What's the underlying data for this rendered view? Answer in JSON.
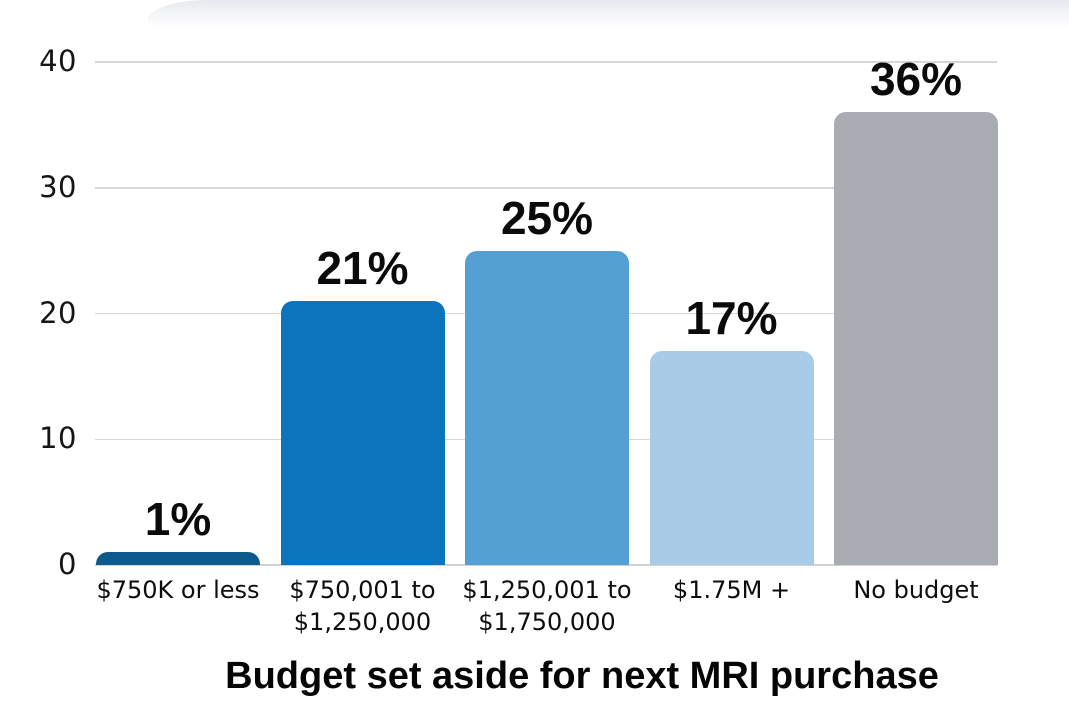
{
  "chart_data": {
    "type": "bar",
    "title": "Budget set aside for next MRI purchase",
    "categories": [
      "$750K or less",
      "$750,001 to\n$1,250,000",
      "$1,250,001 to\n$1,750,000",
      "$1.75M +",
      "No budget"
    ],
    "values": [
      1,
      21,
      25,
      17,
      36
    ],
    "value_labels": [
      "1%",
      "21%",
      "25%",
      "17%",
      "36%"
    ],
    "bar_colors": [
      "#0e5a8c",
      "#0b74bd",
      "#54a0d3",
      "#a8cce7",
      "#a9acb2"
    ],
    "xlabel": "",
    "ylabel": "",
    "ylim": [
      0,
      40
    ],
    "y_ticks": [
      0,
      10,
      20,
      30,
      40
    ],
    "grid": true,
    "gridline_color": "#d7d7d7",
    "legend_position": "none",
    "value_label_color": "#0a0a0a",
    "tick_label_color": "#111111"
  }
}
